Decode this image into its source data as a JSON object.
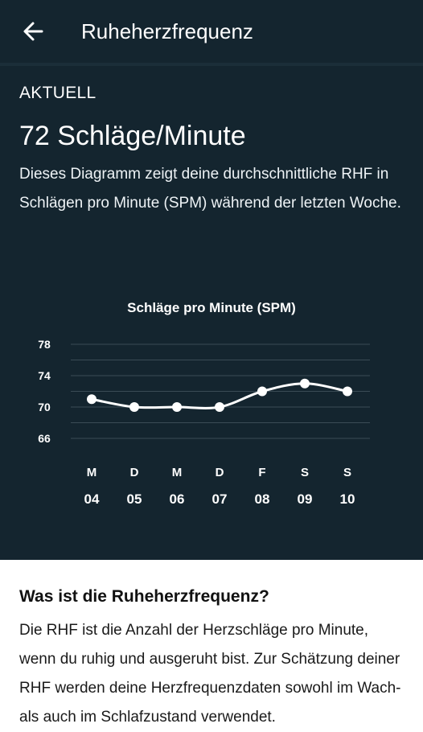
{
  "header": {
    "title": "Ruheherzfrequenz"
  },
  "current": {
    "label": "AKTUELL",
    "value": "72 Schläge/Minute",
    "description": "Dieses Diagramm zeigt deine durchschnittliche RHF in Schlägen pro Minute (SPM) während der letzten Woche."
  },
  "chart_data": {
    "type": "line",
    "title": "Schläge pro Minute (SPM)",
    "y_ticks": [
      78,
      74,
      70,
      66
    ],
    "ylim": [
      66,
      78
    ],
    "categories": [
      "04",
      "05",
      "06",
      "07",
      "08",
      "09",
      "10"
    ],
    "day_letters": [
      "M",
      "D",
      "M",
      "D",
      "F",
      "S",
      "S"
    ],
    "values": [
      71,
      70,
      70,
      70,
      72,
      73,
      72
    ],
    "grid": true,
    "line_color": "#ffffff"
  },
  "info": {
    "heading": "Was ist die Ruheherzfrequenz?",
    "text": "Die RHF ist die Anzahl der Herzschläge pro Minute, wenn du ruhig und ausgeruht bist. Zur Schätzung deiner RHF werden deine Herzfrequenzdaten sowohl im Wach- als auch im Schlafzustand verwendet."
  },
  "colors": {
    "background_dark": "#14252f",
    "gridline": "#3a4b55"
  }
}
